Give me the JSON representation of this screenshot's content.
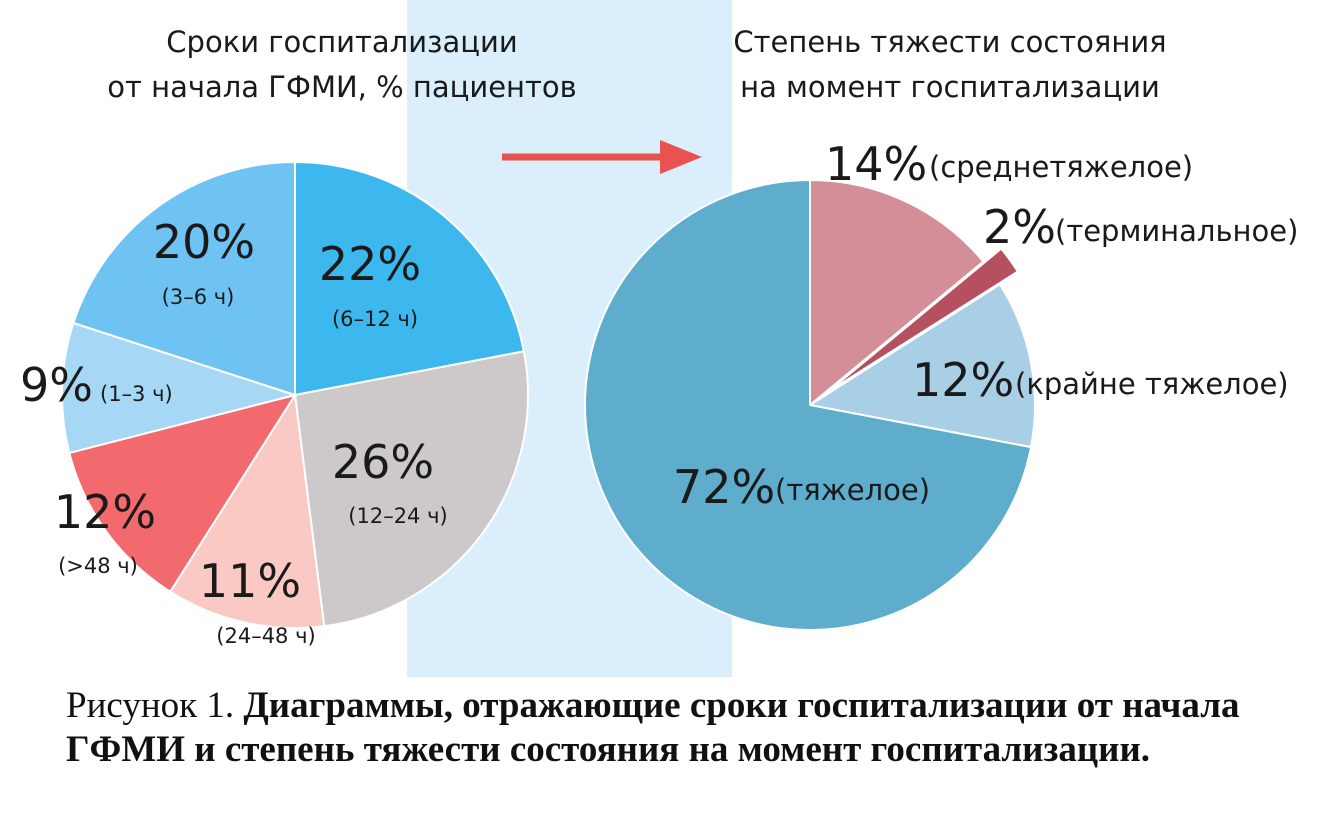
{
  "colors": {
    "background_band": "#dbeefb",
    "arrow": "#e8534f"
  },
  "chart_data": [
    {
      "type": "pie",
      "title_lines": [
        "Сроки госпитализации",
        "от начала ГФМИ, % пациентов"
      ],
      "slices": [
        {
          "value": 22,
          "pct_label": "22%",
          "label": "(6–12 ч)",
          "color": "#3cb8ee"
        },
        {
          "value": 26,
          "pct_label": "26%",
          "label": "(12–24 ч)",
          "color": "#cdc9ca"
        },
        {
          "value": 11,
          "pct_label": "11%",
          "label": "(24–48 ч)",
          "color": "#fbc9c4"
        },
        {
          "value": 12,
          "pct_label": "12%",
          "label": "(>48 ч)",
          "color": "#f26a6d"
        },
        {
          "value": 9,
          "pct_label": "9%",
          "label": "(1–3 ч)",
          "color": "#a6d8f6"
        },
        {
          "value": 20,
          "pct_label": "20%",
          "label": "(3–6 ч)",
          "color": "#6ec3f3"
        }
      ]
    },
    {
      "type": "pie",
      "title_lines": [
        "Степень тяжести состояния",
        "на момент госпитализации"
      ],
      "slices": [
        {
          "value": 14,
          "pct_label": "14%",
          "label": "(среднетяжелое)",
          "color": "#d48e98",
          "exploded": false
        },
        {
          "value": 2,
          "pct_label": "2%",
          "label": "(терминальное)",
          "color": "#b5505f",
          "exploded": true
        },
        {
          "value": 12,
          "pct_label": "12%",
          "label": "(крайне тяжелое)",
          "color": "#a9cfe6",
          "exploded": false
        },
        {
          "value": 72,
          "pct_label": "72%",
          "label": "(тяжелое)",
          "color": "#5eadcc",
          "exploded": false
        }
      ]
    }
  ],
  "caption": {
    "prefix": "Рисунок 1. ",
    "bold": "Диаграммы, отражающие сроки госпитализации от начала ГФМИ и степень тяжести состояния на момент госпитализации."
  }
}
